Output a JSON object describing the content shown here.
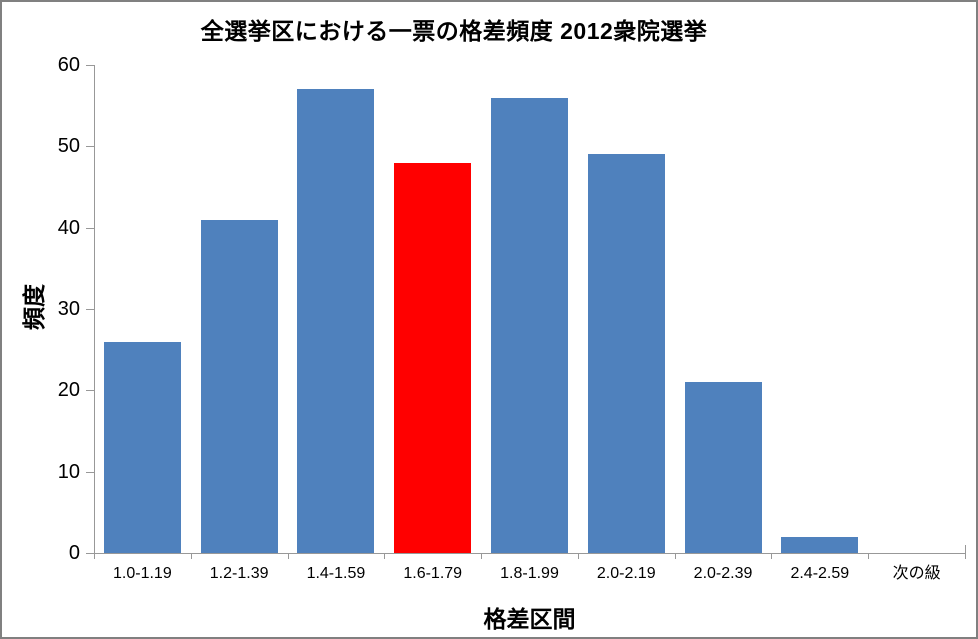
{
  "window": {
    "background": "#FFFFFF",
    "border_color": "#808080"
  },
  "chart_data": {
    "type": "bar",
    "title": "全選挙区における一票の格差頻度 2012衆院選挙",
    "xlabel": "格差区間",
    "ylabel": "頻度",
    "categories": [
      "1.0-1.19",
      "1.2-1.39",
      "1.4-1.59",
      "1.6-1.79",
      "1.8-1.99",
      "2.0-2.19",
      "2.0-2.39",
      "2.4-2.59",
      "次の級"
    ],
    "values": [
      26,
      41,
      57,
      48,
      56,
      49,
      21,
      2,
      0
    ],
    "highlight_index": 3,
    "bar_color": "#4F81BD",
    "highlight_color": "#FF0000",
    "axis_color": "#989898",
    "text_color": "#000000",
    "ylim": [
      0,
      60
    ],
    "ytick_step": 10,
    "grid": false,
    "legend_position": "none"
  }
}
